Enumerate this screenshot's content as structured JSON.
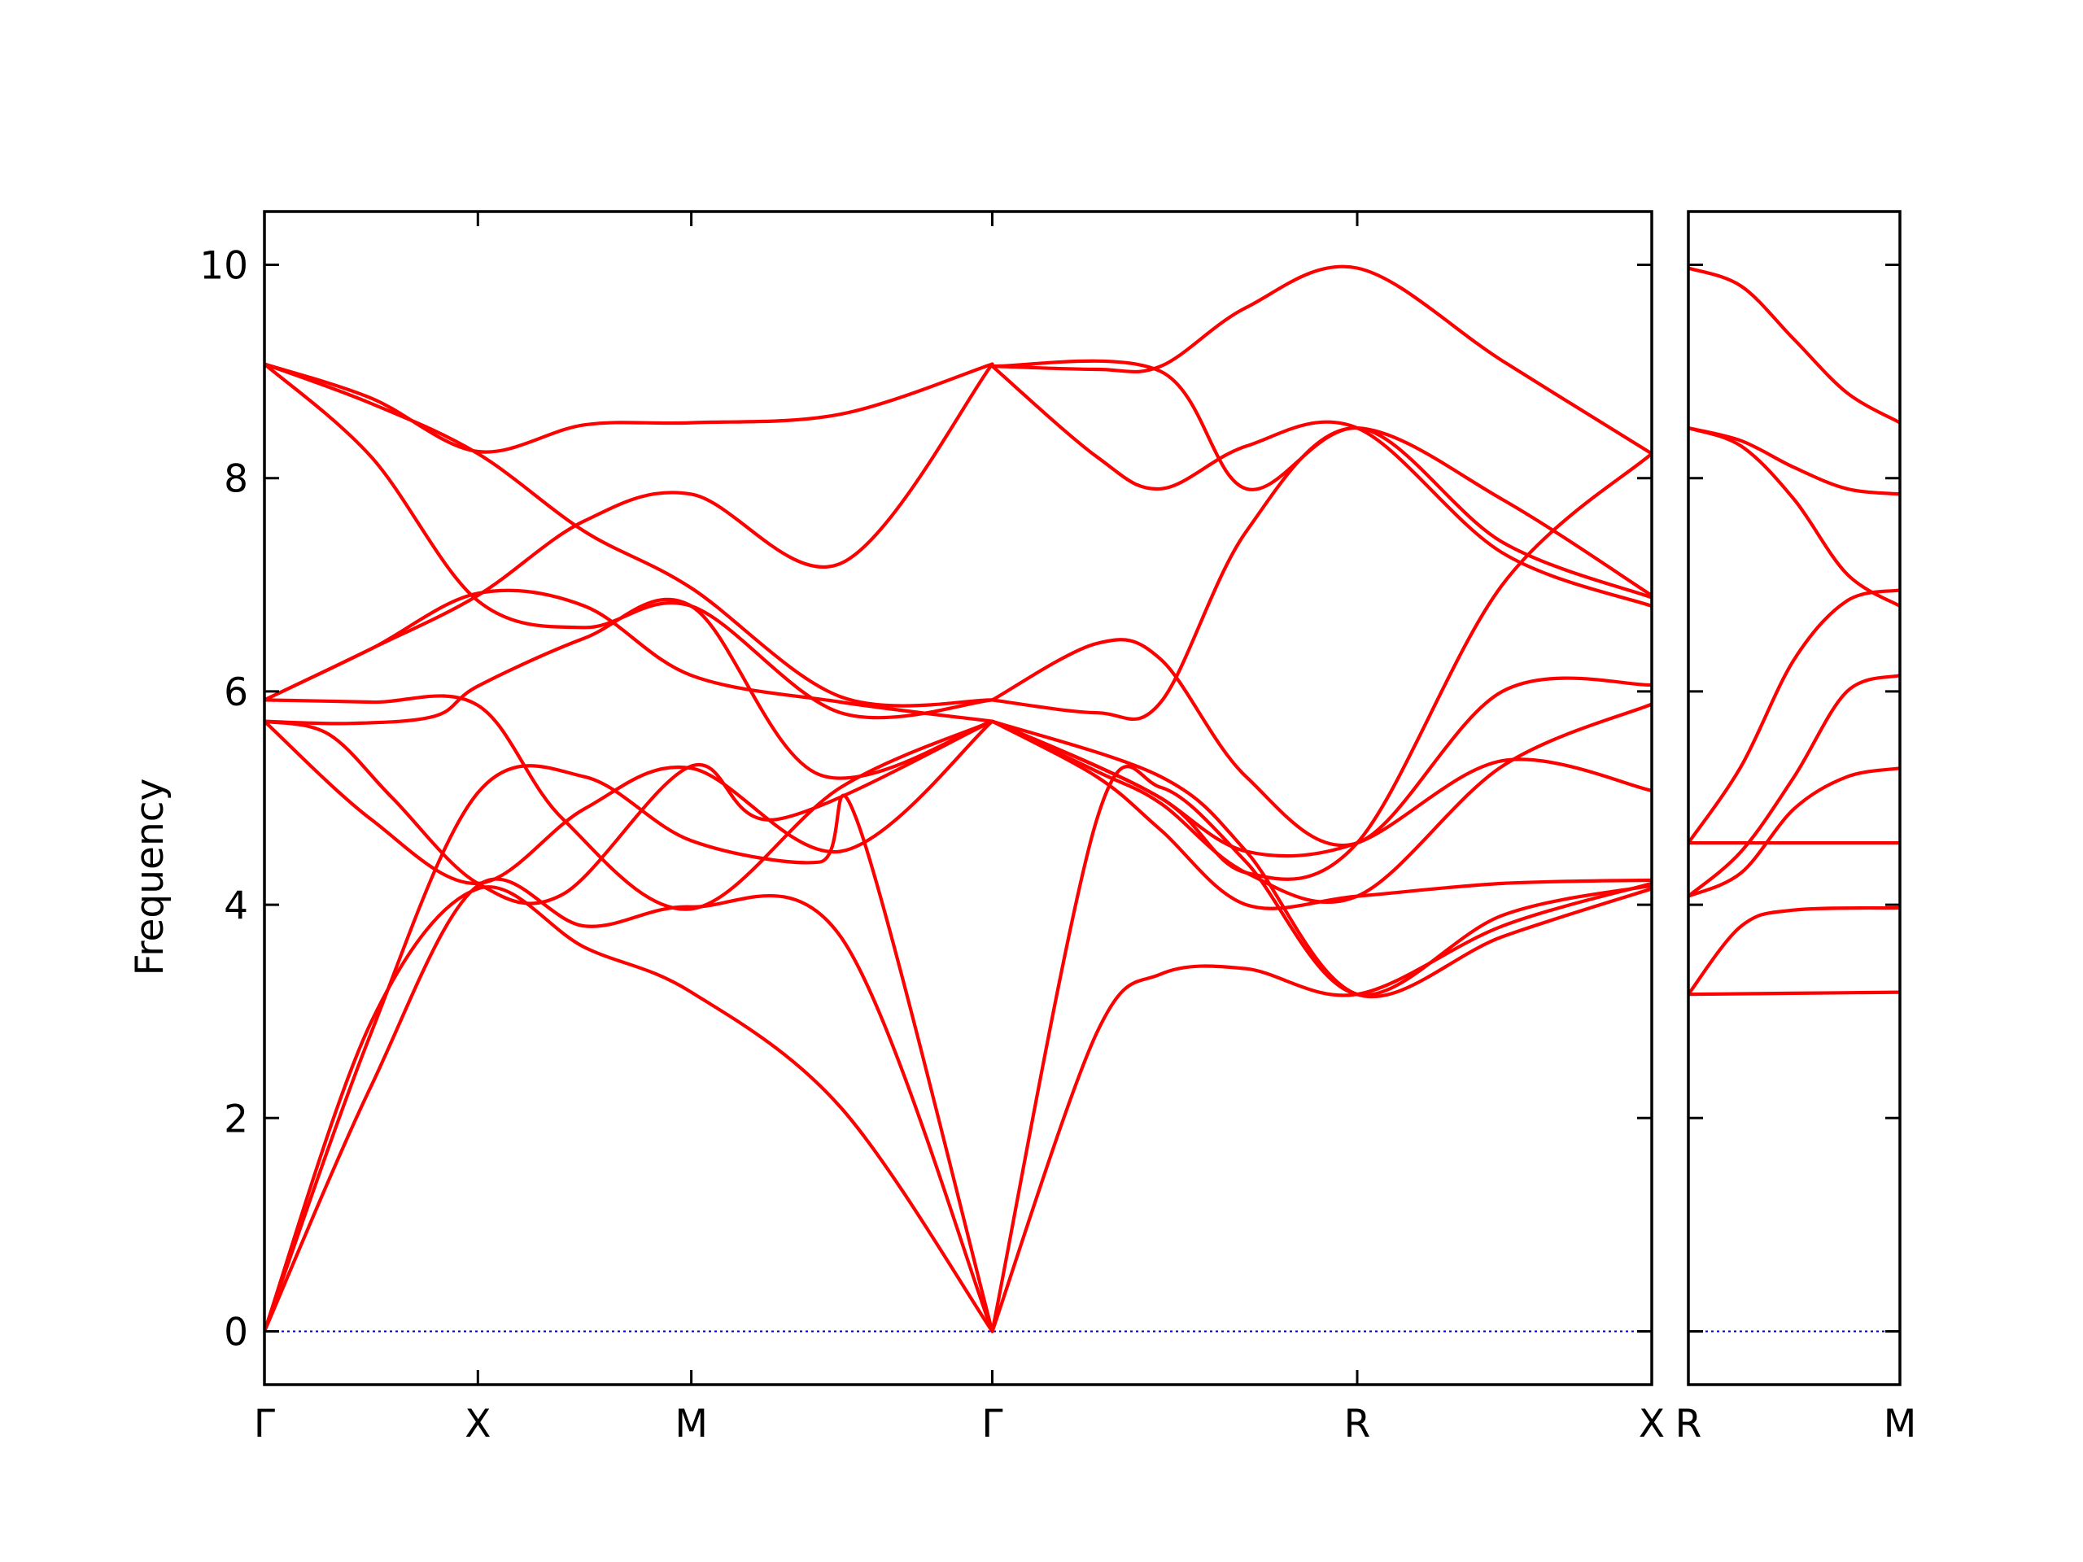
{
  "chart_data": {
    "type": "line",
    "ylabel": "Frequency",
    "ylim": [
      -0.5,
      10.5
    ],
    "yticks": [
      0,
      2,
      4,
      6,
      8,
      10
    ],
    "band_color": "#ff0000",
    "zero_line_color": "#0000aa",
    "grid": false,
    "panels": [
      {
        "x_range": [
          0,
          6.5
        ],
        "xticks": [
          {
            "pos": 0,
            "label": "Γ"
          },
          {
            "pos": 1,
            "label": "X"
          },
          {
            "pos": 2,
            "label": "M"
          },
          {
            "pos": 3.41,
            "label": "Γ"
          },
          {
            "pos": 5.12,
            "label": "R"
          },
          {
            "pos": 6.5,
            "label": "X"
          }
        ],
        "series": [
          {
            "x": [
              0,
              0.5,
              1,
              1.5,
              2,
              2.7,
              3.41
            ],
            "values": [
              0,
              2.9,
              4.15,
              3.6,
              3.18,
              2.1,
              0
            ]
          },
          {
            "x": [
              0,
              0.5,
              1,
              1.5,
              2,
              2.7,
              3.41
            ],
            "values": [
              0,
              2.3,
              4.18,
              3.8,
              3.98,
              3.7,
              0
            ]
          },
          {
            "x": [
              0,
              0.5,
              1,
              1.5,
              2,
              2.6,
              2.78,
              3.41
            ],
            "values": [
              0,
              2.8,
              5.05,
              5.2,
              4.6,
              4.4,
              4.77,
              0
            ]
          },
          {
            "x": [
              0,
              0.3,
              0.6,
              1,
              1.4,
              2,
              2.4,
              3.41
            ],
            "values": [
              5.72,
              5.6,
              5.0,
              4.2,
              4.1,
              5.3,
              4.8,
              5.72
            ]
          },
          {
            "x": [
              0,
              0.4,
              0.8,
              1,
              1.5,
              2,
              2.6,
              3.41
            ],
            "values": [
              5.72,
              5.7,
              5.77,
              6.05,
              6.5,
              6.8,
              5.22,
              5.72
            ]
          },
          {
            "x": [
              0,
              0.5,
              1,
              1.4,
              2,
              2.7,
              3.41
            ],
            "values": [
              5.92,
              5.9,
              5.87,
              4.8,
              3.96,
              5.1,
              5.72
            ]
          },
          {
            "x": [
              0,
              0.5,
              1,
              1.5,
              2,
              2.7,
              3.41
            ],
            "values": [
              5.92,
              6.4,
              6.92,
              6.8,
              6.15,
              5.9,
              5.72
            ]
          },
          {
            "x": [
              0,
              0.5,
              1,
              1.5,
              2,
              2.7,
              3.41
            ],
            "values": [
              9.07,
              8.2,
              6.85,
              6.6,
              6.8,
              5.8,
              5.92
            ]
          },
          {
            "x": [
              0,
              0.5,
              1,
              1.5,
              2,
              2.7,
              3.41
            ],
            "values": [
              9.07,
              8.7,
              8.23,
              7.5,
              6.97,
              5.95,
              5.92
            ]
          },
          {
            "x": [
              0,
              0.5,
              1,
              1.5,
              2,
              2.7,
              3.41
            ],
            "values": [
              9.07,
              8.75,
              8.25,
              8.5,
              8.52,
              8.6,
              9.07
            ]
          },
          {
            "x": [
              0,
              0.5,
              1,
              1.5,
              2,
              2.7,
              3.41
            ],
            "values": [
              5.92,
              6.4,
              6.9,
              7.6,
              7.85,
              7.2,
              9.07
            ]
          },
          {
            "x": [
              0,
              0.5,
              1,
              1.5,
              2,
              2.7,
              3.41
            ],
            "values": [
              5.72,
              4.8,
              4.2,
              4.9,
              5.28,
              4.5,
              5.72
            ]
          },
          {
            "x": [
              3.41,
              3.9,
              4.2,
              4.6,
              5.12,
              5.8,
              6.5
            ],
            "values": [
              0,
              2.8,
              3.35,
              3.4,
              3.16,
              3.8,
              4.2
            ]
          },
          {
            "x": [
              3.41,
              3.9,
              4.2,
              4.6,
              5.12,
              5.8,
              6.5
            ],
            "values": [
              0,
              4.8,
              5.1,
              4.4,
              3.16,
              3.9,
              4.18
            ]
          },
          {
            "x": [
              3.41,
              3.9,
              4.2,
              4.6,
              5.12,
              5.8,
              6.5
            ],
            "values": [
              5.72,
              5.2,
              4.7,
              4.0,
              4.08,
              4.2,
              4.23
            ]
          },
          {
            "x": [
              3.41,
              3.9,
              4.2,
              4.6,
              5.12,
              5.8,
              6.5
            ],
            "values": [
              5.72,
              5.25,
              4.95,
              4.3,
              4.08,
              5.3,
              5.88
            ]
          },
          {
            "x": [
              3.41,
              3.9,
              4.2,
              4.6,
              5.12,
              5.8,
              6.5
            ],
            "values": [
              5.72,
              5.3,
              5.0,
              4.5,
              4.58,
              5.35,
              5.07
            ]
          },
          {
            "x": [
              3.41,
              3.9,
              4.2,
              4.6,
              5.12,
              5.8,
              6.5
            ],
            "values": [
              5.92,
              6.45,
              6.3,
              5.2,
              4.58,
              6.0,
              6.06
            ]
          },
          {
            "x": [
              3.41,
              3.9,
              4.2,
              4.6,
              5.12,
              5.8,
              6.5
            ],
            "values": [
              5.92,
              5.8,
              5.9,
              7.5,
              8.47,
              7.4,
              6.88
            ]
          },
          {
            "x": [
              3.41,
              3.9,
              4.2,
              4.6,
              5.12,
              5.8,
              6.5
            ],
            "values": [
              9.05,
              8.2,
              7.9,
              8.3,
              8.47,
              7.3,
              6.8
            ]
          },
          {
            "x": [
              3.41,
              3.9,
              4.2,
              4.6,
              5.12,
              5.8,
              6.5
            ],
            "values": [
              9.05,
              9.02,
              9.05,
              9.6,
              9.97,
              9.1,
              8.23
            ]
          },
          {
            "x": [
              3.41,
              4.2,
              4.6,
              5.12,
              5.8,
              6.5
            ],
            "values": [
              9.05,
              9.0,
              7.9,
              8.47,
              7.8,
              6.9
            ]
          },
          {
            "x": [
              3.41,
              4.2,
              4.6,
              5.12,
              5.8,
              6.5
            ],
            "values": [
              5.72,
              5.0,
              4.3,
              4.58,
              7.0,
              8.23
            ]
          },
          {
            "x": [
              3.41,
              4.2,
              4.6,
              5.12,
              5.8,
              6.5
            ],
            "values": [
              5.72,
              5.2,
              4.5,
              3.16,
              3.7,
              4.15
            ]
          }
        ]
      },
      {
        "x_range": [
          0,
          1
        ],
        "xticks": [
          {
            "pos": 0,
            "label": "R"
          },
          {
            "pos": 1,
            "label": "M"
          }
        ],
        "series": [
          {
            "x": [
              0,
              0.5,
              1
            ],
            "values": [
              3.16,
              3.17,
              3.18
            ]
          },
          {
            "x": [
              0,
              0.25,
              0.5,
              1
            ],
            "values": [
              3.16,
              3.8,
              3.95,
              3.97
            ]
          },
          {
            "x": [
              0,
              0.5,
              1
            ],
            "values": [
              4.58,
              4.58,
              4.58
            ]
          },
          {
            "x": [
              0,
              0.25,
              0.5,
              0.75,
              1
            ],
            "values": [
              4.08,
              4.3,
              4.9,
              5.2,
              5.28
            ]
          },
          {
            "x": [
              0,
              0.25,
              0.5,
              0.75,
              1
            ],
            "values": [
              4.08,
              4.5,
              5.2,
              6.0,
              6.15
            ]
          },
          {
            "x": [
              0,
              0.25,
              0.5,
              0.75,
              1
            ],
            "values": [
              4.58,
              5.3,
              6.3,
              6.85,
              6.95
            ]
          },
          {
            "x": [
              0,
              0.25,
              0.5,
              0.75,
              1
            ],
            "values": [
              8.47,
              8.3,
              7.8,
              7.1,
              6.8
            ]
          },
          {
            "x": [
              0,
              0.25,
              0.5,
              0.75,
              1
            ],
            "values": [
              8.47,
              8.35,
              8.1,
              7.9,
              7.85
            ]
          },
          {
            "x": [
              0,
              0.25,
              0.5,
              0.75,
              1
            ],
            "values": [
              9.97,
              9.8,
              9.3,
              8.8,
              8.52
            ]
          }
        ]
      }
    ]
  }
}
